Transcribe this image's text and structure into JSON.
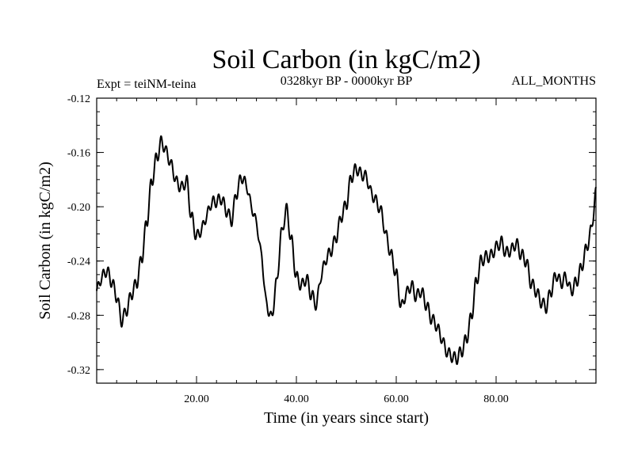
{
  "chart_data": {
    "type": "line",
    "title": "Soil Carbon (in kgC/m2)",
    "subtitle_left": "Expt = teiNM-teina",
    "subtitle_center": "0328kyr BP - 0000kyr BP",
    "subtitle_right": "ALL_MONTHS",
    "xlabel": "Time (in years since start)",
    "ylabel": "Soil Carbon (in kgC/m2)",
    "xlim": [
      0,
      100
    ],
    "ylim": [
      -0.33,
      -0.12
    ],
    "x_ticks": [
      20,
      40,
      60,
      80
    ],
    "x_tick_labels": [
      "20.00",
      "40.00",
      "60.00",
      "80.00"
    ],
    "y_ticks": [
      -0.12,
      -0.16,
      -0.2,
      -0.24,
      -0.28,
      -0.32
    ],
    "y_tick_labels": [
      "-0.12",
      "-0.16",
      "-0.20",
      "-0.24",
      "-0.28",
      "-0.32"
    ],
    "grid": false,
    "series": [
      {
        "name": "Soil Carbon",
        "color": "#000000",
        "x": [
          0,
          1,
          2,
          3,
          4,
          5,
          6,
          7,
          8,
          9,
          10,
          11,
          12,
          13,
          14,
          15,
          16,
          17,
          18,
          19,
          20,
          21,
          22,
          23,
          24,
          25,
          26,
          27,
          28,
          29,
          30,
          31,
          32,
          33,
          34,
          35,
          36,
          37,
          38,
          39,
          40,
          41,
          42,
          43,
          44,
          45,
          46,
          47,
          48,
          49,
          50,
          51,
          52,
          53,
          54,
          55,
          56,
          57,
          58,
          59,
          60,
          61,
          62,
          63,
          64,
          65,
          66,
          67,
          68,
          69,
          70,
          71,
          72,
          73,
          74,
          75,
          76,
          77,
          78,
          79,
          80,
          81,
          82,
          83,
          84,
          85,
          86,
          87,
          88,
          89,
          90,
          91,
          92,
          93,
          94,
          95,
          96,
          97,
          98,
          99,
          100
        ],
        "values": [
          -0.262,
          -0.252,
          -0.247,
          -0.255,
          -0.266,
          -0.284,
          -0.276,
          -0.264,
          -0.256,
          -0.238,
          -0.212,
          -0.182,
          -0.164,
          -0.152,
          -0.16,
          -0.17,
          -0.182,
          -0.186,
          -0.181,
          -0.208,
          -0.222,
          -0.217,
          -0.207,
          -0.197,
          -0.196,
          -0.194,
          -0.203,
          -0.21,
          -0.19,
          -0.178,
          -0.184,
          -0.2,
          -0.212,
          -0.236,
          -0.272,
          -0.282,
          -0.257,
          -0.22,
          -0.202,
          -0.225,
          -0.252,
          -0.258,
          -0.253,
          -0.265,
          -0.272,
          -0.25,
          -0.238,
          -0.232,
          -0.222,
          -0.207,
          -0.198,
          -0.178,
          -0.172,
          -0.176,
          -0.178,
          -0.19,
          -0.196,
          -0.204,
          -0.222,
          -0.236,
          -0.25,
          -0.274,
          -0.264,
          -0.258,
          -0.266,
          -0.262,
          -0.272,
          -0.282,
          -0.287,
          -0.296,
          -0.306,
          -0.31,
          -0.312,
          -0.307,
          -0.298,
          -0.282,
          -0.256,
          -0.24,
          -0.237,
          -0.236,
          -0.23,
          -0.226,
          -0.234,
          -0.232,
          -0.227,
          -0.235,
          -0.24,
          -0.256,
          -0.262,
          -0.27,
          -0.274,
          -0.262,
          -0.25,
          -0.256,
          -0.252,
          -0.262,
          -0.256,
          -0.246,
          -0.232,
          -0.218,
          -0.19
        ]
      }
    ]
  }
}
